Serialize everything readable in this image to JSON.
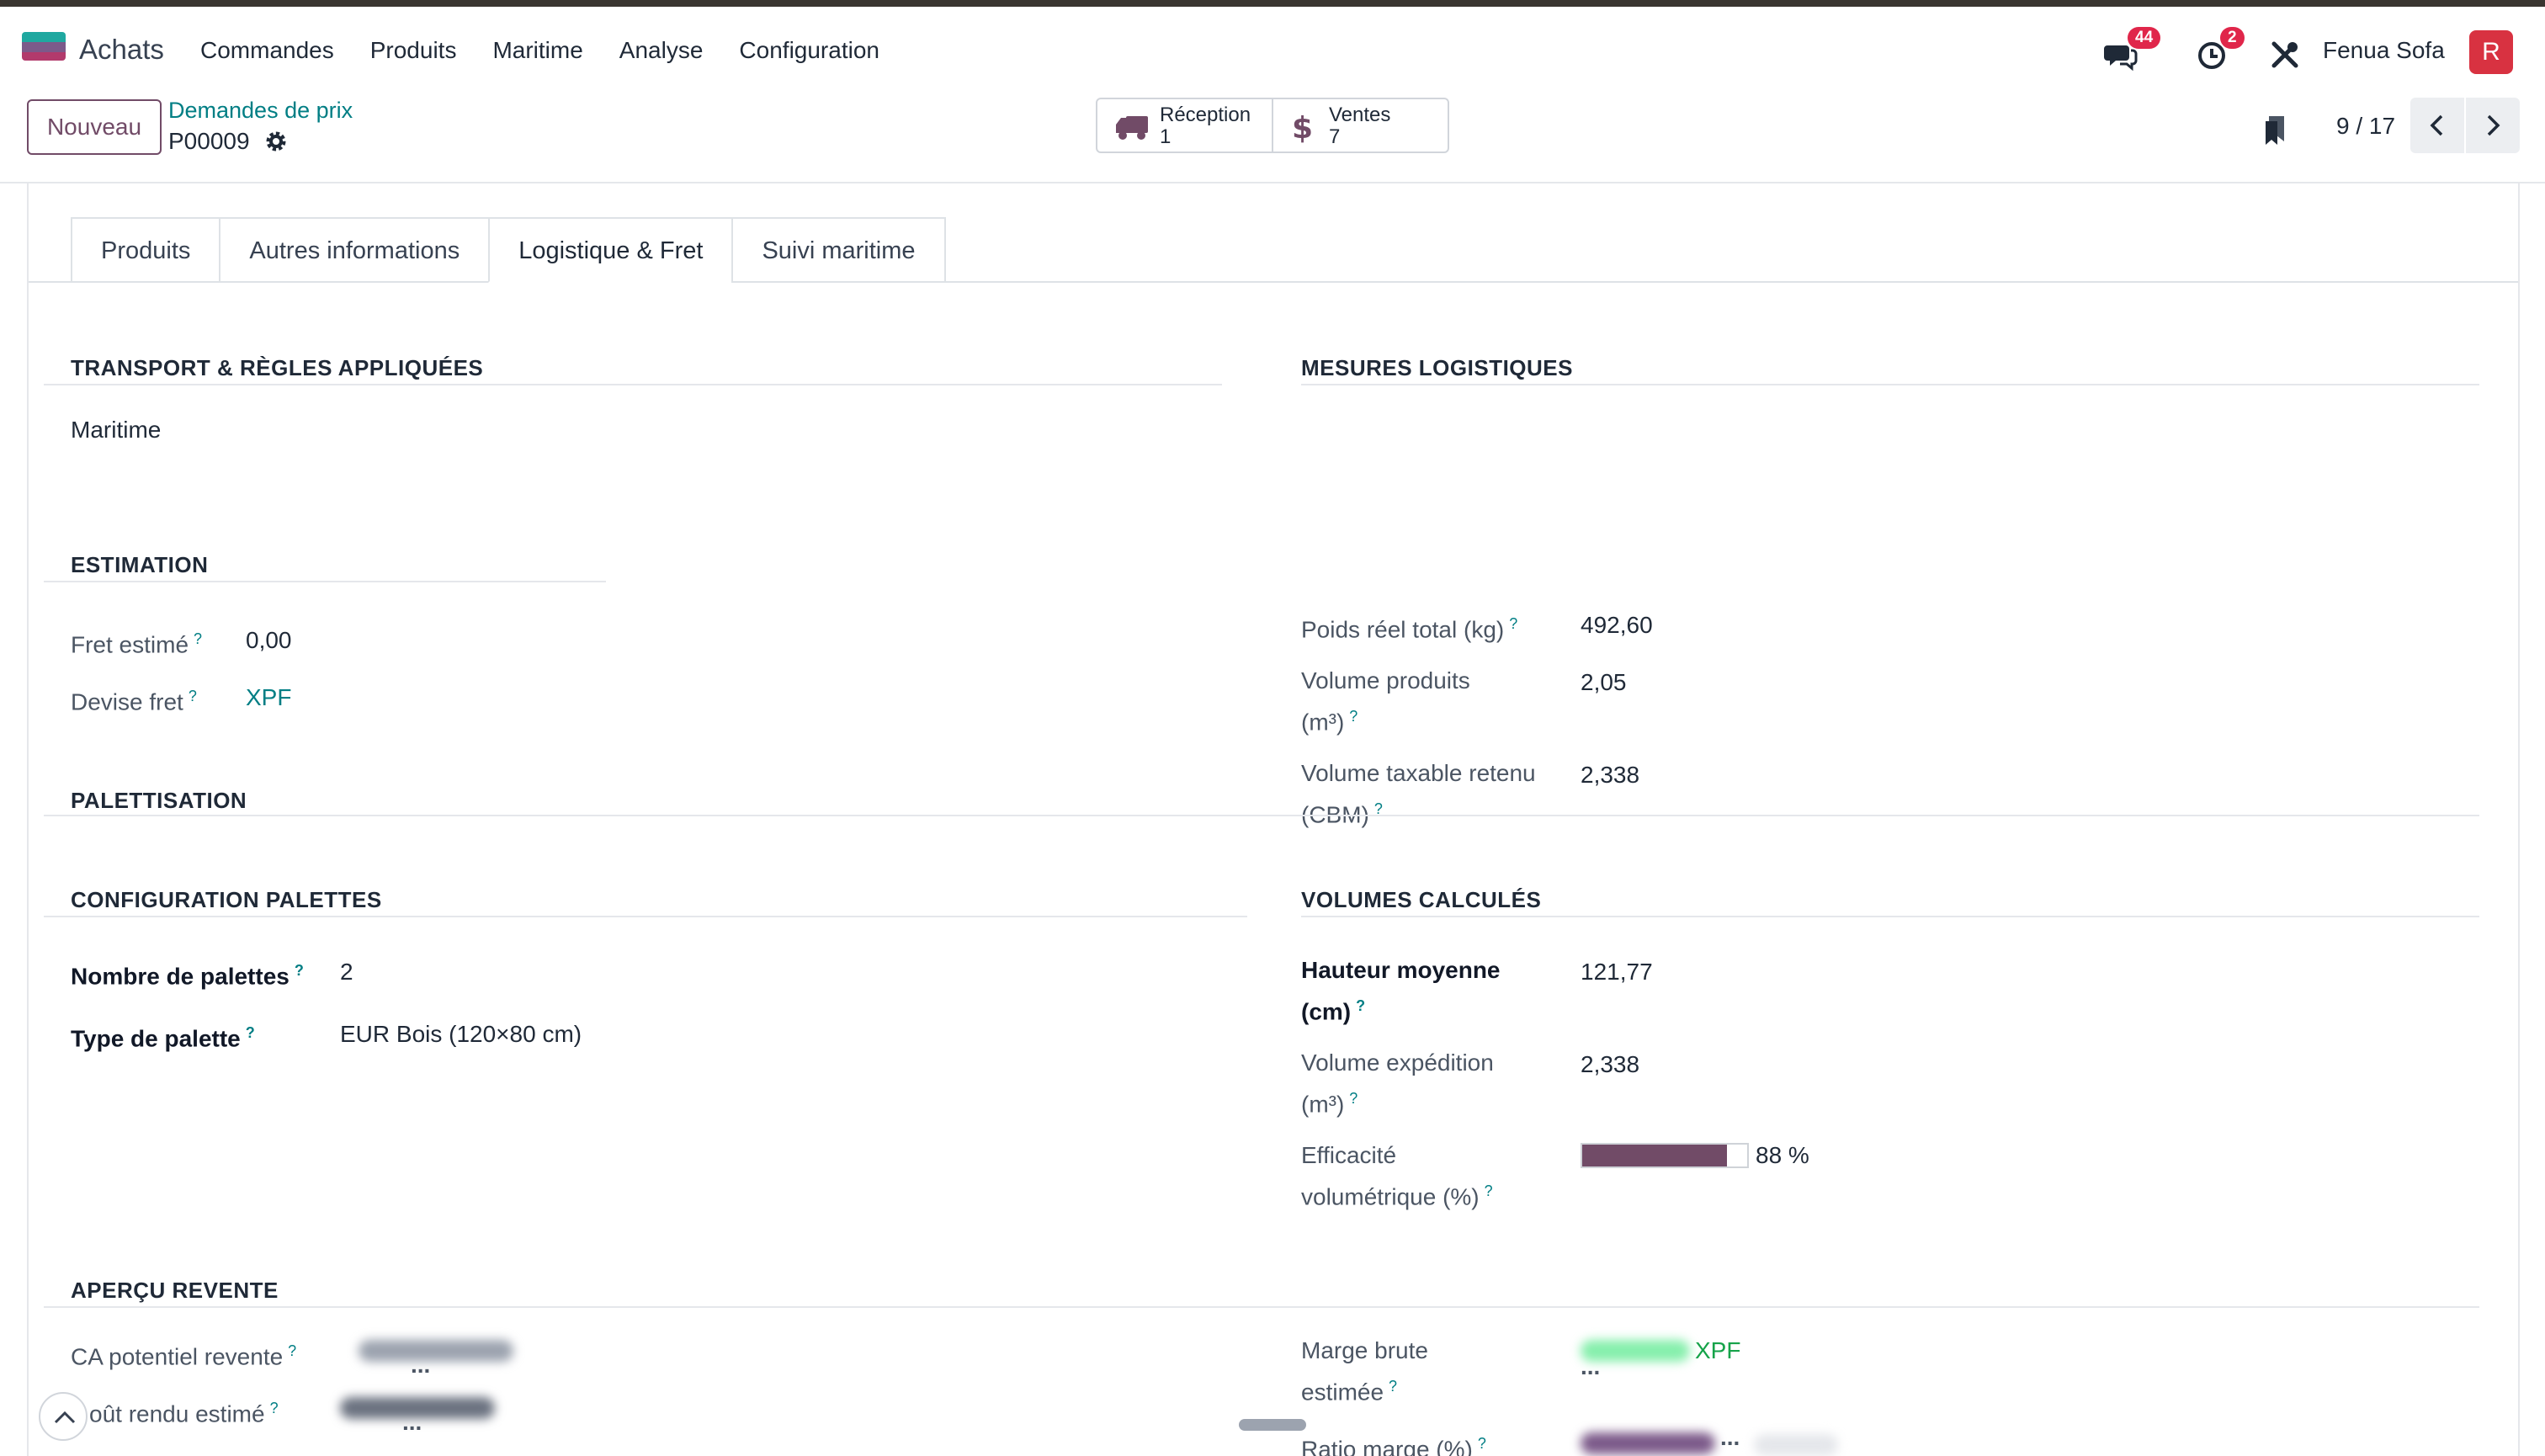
{
  "navbar": {
    "app_name": "Achats",
    "menu": [
      "Commandes",
      "Produits",
      "Maritime",
      "Analyse",
      "Configuration"
    ],
    "chat_badge": "44",
    "activity_badge": "2",
    "company": "Fenua Sofa",
    "avatar_letter": "R"
  },
  "control": {
    "new_button": "Nouveau",
    "breadcrumb": "Demandes de prix",
    "record": "P00009",
    "smart_buttons": [
      {
        "label": "Réception",
        "value": "1",
        "icon": "truck-icon"
      },
      {
        "label": "Ventes",
        "value": "7",
        "icon": "dollar-icon"
      }
    ],
    "pager": "9 / 17"
  },
  "tabs": [
    "Produits",
    "Autres informations",
    "Logistique & Fret",
    "Suivi maritime"
  ],
  "active_tab": "Logistique & Fret",
  "transport": {
    "title": "TRANSPORT & RÈGLES APPLIQUÉES",
    "mode": "Maritime"
  },
  "estimation": {
    "title": "ESTIMATION",
    "fret_label": "Fret estimé",
    "fret_value": "0,00",
    "devise_label": "Devise fret",
    "devise_value": "XPF"
  },
  "mesures": {
    "title": "MESURES LOGISTIQUES",
    "poids_label": "Poids réel total (kg)",
    "poids_value": "492,60",
    "vol_prod_label1": "Volume produits",
    "vol_prod_label2": "(m³)",
    "vol_prod_value": "2,05",
    "vol_tax_label1": "Volume taxable retenu",
    "vol_tax_label2": "(CBM)",
    "vol_tax_value": "2,338"
  },
  "palettisation": {
    "title": "PALETTISATION"
  },
  "config_palettes": {
    "title": "CONFIGURATION PALETTES",
    "nb_label": "Nombre de palettes",
    "nb_value": "2",
    "type_label": "Type de palette",
    "type_value": "EUR Bois (120×80 cm)"
  },
  "volumes": {
    "title": "VOLUMES CALCULÉS",
    "hauteur_label1": "Hauteur moyenne",
    "hauteur_label2": "(cm)",
    "hauteur_value": "121,77",
    "vol_exp_label1": "Volume expédition",
    "vol_exp_label2": "(m³)",
    "vol_exp_value": "2,338",
    "eff_label1": "Efficacité",
    "eff_label2": "volumétrique (%)",
    "eff_value": "88 %",
    "eff_fraction": 0.88
  },
  "revente": {
    "title": "APERÇU REVENTE",
    "ca_label": "CA potentiel revente",
    "cout_label": "oût rendu estimé",
    "cout_partial": "...",
    "marge_label1": "Marge brute",
    "marge_label2": "estimée",
    "marge_currency": "XPF",
    "ratio_label": "Ratio marge (%)",
    "ellipsis": "..."
  },
  "colors": {
    "brand": "#714b67",
    "link": "#017e84",
    "badge": "#e0264a",
    "avatar": "#d83241"
  }
}
